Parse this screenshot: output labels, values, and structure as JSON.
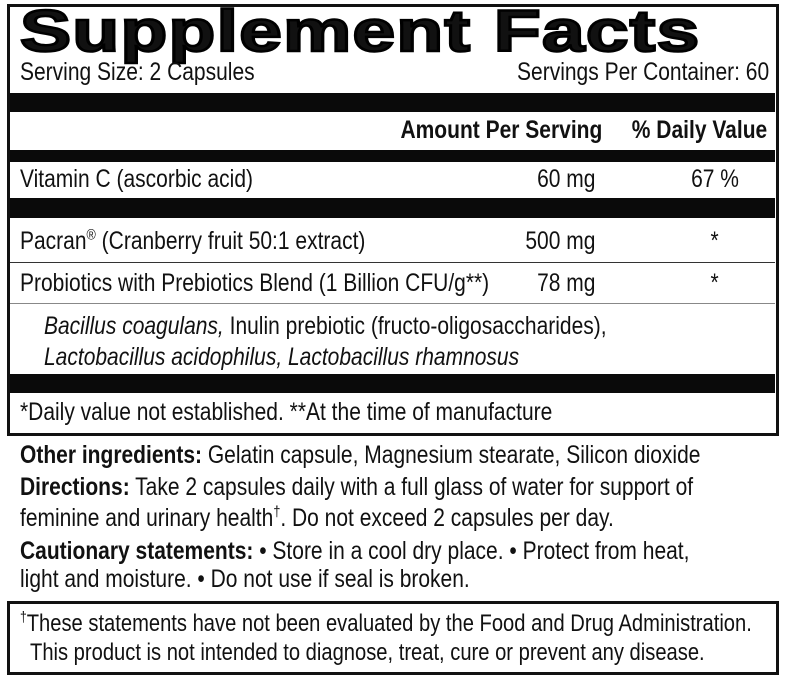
{
  "title": "Supplement Facts",
  "serving_size": "Serving Size:  2 Capsules",
  "servings_per_container": "Servings Per Container: 60",
  "header": {
    "amount": "Amount Per Serving",
    "daily_value": "% Daily Value"
  },
  "rows": [
    {
      "name": "Vitamin C (ascorbic acid)",
      "amount": "60 mg",
      "dv": "67 %"
    },
    {
      "name": "Pacran",
      "name_mark": "®",
      "name_rest": " (Cranberry fruit 50:1 extract)",
      "amount": "500 mg",
      "dv": "*"
    },
    {
      "name": "Probiotics with Prebiotics Blend (1 Billion CFU/g**)",
      "amount": "78 mg",
      "dv": "*"
    }
  ],
  "blend": {
    "line1_italic": "Bacillus coagulans,",
    "line1_rest": " Inulin prebiotic (fructo-oligosaccharides),",
    "line2_italic": "Lactobacillus acidophilus, Lactobacillus rhamnosus"
  },
  "footnote": "*Daily value not established. **At the time of manufacture",
  "other_ingredients": {
    "label": "Other ingredients:",
    "text": " Gelatin capsule, Magnesium stearate, Silicon dioxide"
  },
  "directions": {
    "label": "Directions:",
    "text1": " Take 2 capsules daily with a full glass of water for support of",
    "text2a": "feminine and urinary health",
    "dagger": "†",
    "text2b": ". Do not exceed 2 capsules per day."
  },
  "cautionary": {
    "label": "Cautionary statements:",
    "text1": " • Store in a cool dry place.  • Protect from heat,",
    "text2": "light and moisture.  • Do not use if seal is broken."
  },
  "disclaimer": {
    "dagger": "†",
    "line1": "These statements have not been evaluated by the Food and Drug Administration.",
    "line2": "This product is not intended to diagnose, treat, cure or prevent any disease."
  }
}
